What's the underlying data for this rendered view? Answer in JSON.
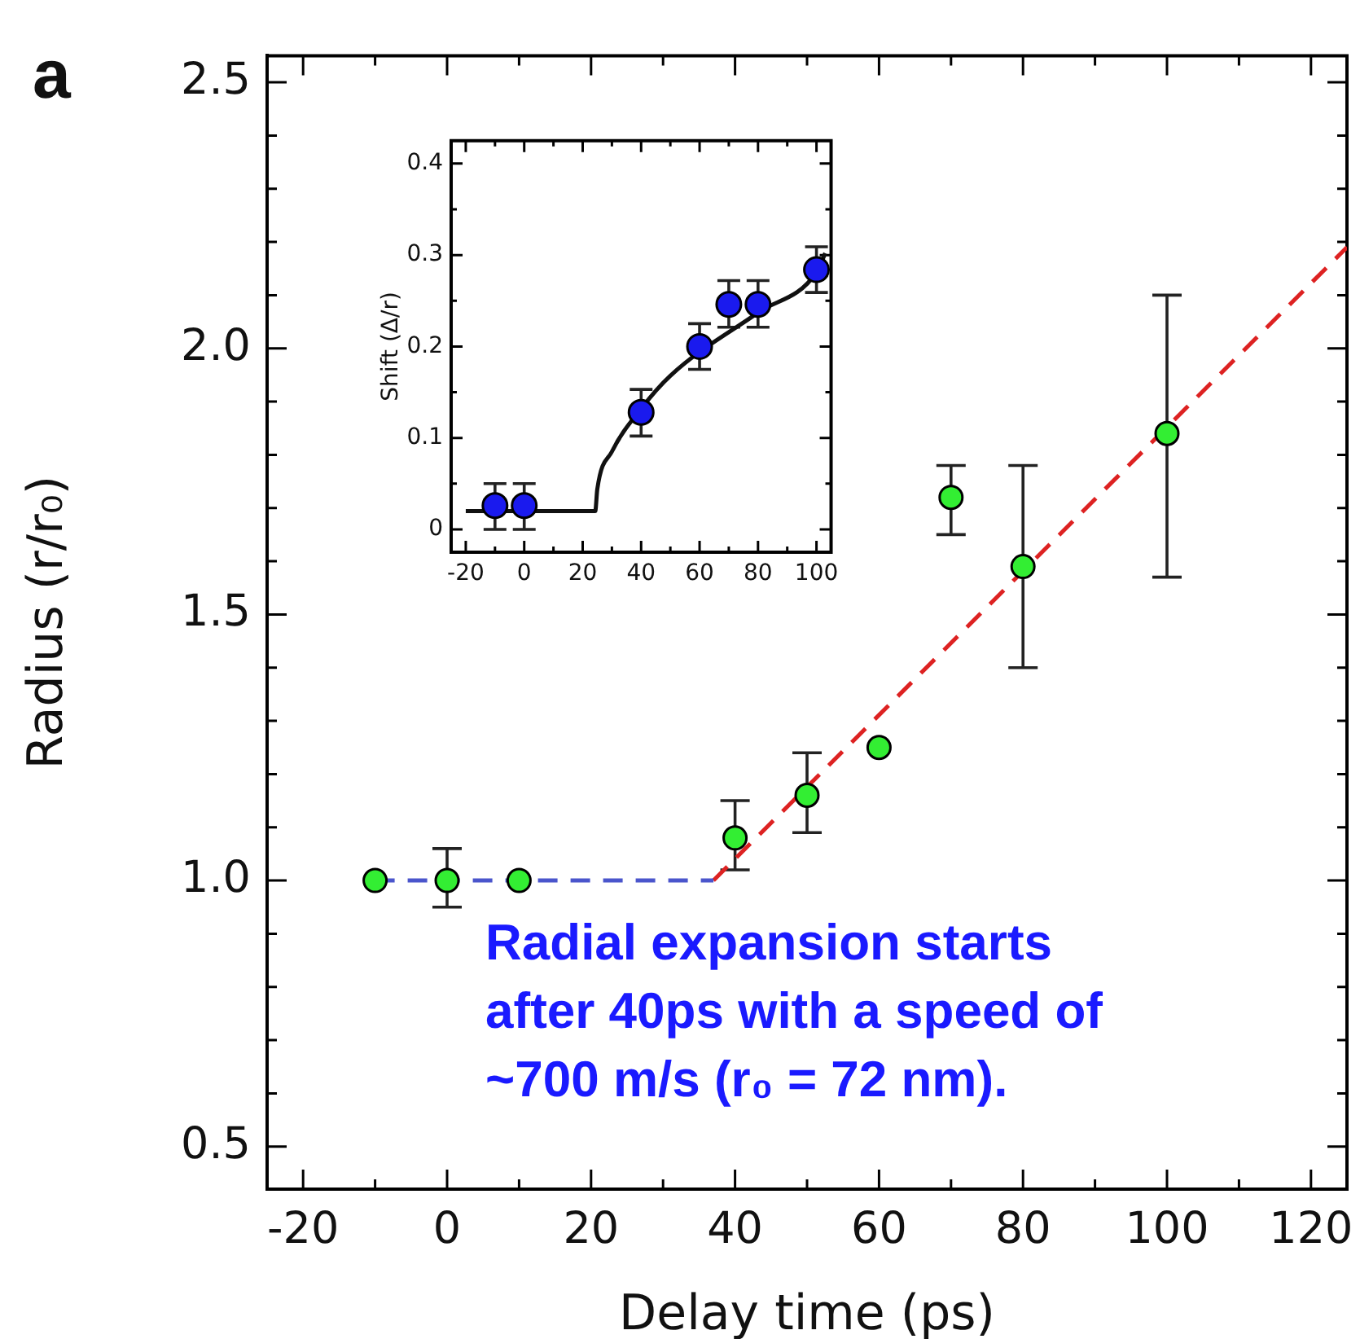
{
  "chart_data": [
    {
      "type": "scatter",
      "xlabel": "Delay time (ps)",
      "ylabel": "Radius (r/r₀)",
      "annotations": [
        "a",
        "Radial expansion starts after 40ps with a speed of ~700 m/s (r₀ = 72 nm)."
      ],
      "xlim": [
        -25,
        125
      ],
      "xticks": [
        -20,
        {
          "value": -10,
          "label": null
        },
        0,
        {
          "value": 10,
          "label": null
        },
        20,
        {
          "value": 30,
          "label": null
        },
        40,
        {
          "value": 50,
          "label": null
        },
        60,
        {
          "value": 70,
          "label": null
        },
        80,
        {
          "value": 90,
          "label": null
        },
        100,
        {
          "value": 110,
          "label": null
        },
        120
      ],
      "ylim": [
        0.42,
        2.55
      ],
      "yticks": [
        0.5,
        {
          "value": 0.6,
          "label": null
        },
        {
          "value": 0.7,
          "label": null
        },
        {
          "value": 0.8,
          "label": null
        },
        {
          "value": 0.9,
          "label": null
        },
        {
          "value": 1,
          "label": "1.0"
        },
        {
          "value": 1.1,
          "label": null
        },
        {
          "value": 1.2,
          "label": null
        },
        {
          "value": 1.3,
          "label": null
        },
        {
          "value": 1.4,
          "label": null
        },
        1.5,
        {
          "value": 1.6,
          "label": null
        },
        {
          "value": 1.7,
          "label": null
        },
        {
          "value": 1.8,
          "label": null
        },
        {
          "value": 1.9,
          "label": null
        },
        {
          "value": 2,
          "label": "2.0"
        },
        {
          "value": 2.1,
          "label": null
        },
        {
          "value": 2.2,
          "label": null
        },
        {
          "value": 2.3,
          "label": null
        },
        {
          "value": 2.4,
          "label": null
        },
        2.5
      ],
      "grid": false,
      "legend": false,
      "marker": "circle",
      "series": [
        {
          "type": "line",
          "color": "#4a55cc",
          "line_style": "dashed",
          "marker": "none",
          "x": [
            -10,
            37
          ],
          "values": [
            1,
            1
          ]
        },
        {
          "type": "line",
          "color": "#dd2222",
          "line_style": "dashed",
          "marker": "none",
          "x": [
            37,
            125
          ],
          "values": [
            1,
            2.19
          ]
        },
        {
          "color": "#33ee33",
          "x": [
            -10,
            0,
            10,
            40,
            50,
            60,
            70,
            80,
            100
          ],
          "values": [
            1,
            1,
            1,
            1.08,
            1.16,
            1.25,
            1.72,
            1.59,
            1.84
          ],
          "errors": [
            null,
            [
              0.95,
              1.06
            ],
            null,
            [
              1.02,
              1.15
            ],
            [
              1.09,
              1.24
            ],
            null,
            [
              1.65,
              1.78
            ],
            [
              1.4,
              1.78
            ],
            [
              1.57,
              2.1
            ]
          ]
        }
      ]
    },
    {
      "type": "scatter",
      "ylabel": "Shift (Δ/r)",
      "xlim": [
        -25,
        105
      ],
      "xticks": [
        -20,
        {
          "value": -10,
          "label": null
        },
        0,
        {
          "value": 10,
          "label": null
        },
        20,
        {
          "value": 30,
          "label": null
        },
        40,
        {
          "value": 50,
          "label": null
        },
        60,
        {
          "value": 70,
          "label": null
        },
        80,
        {
          "value": 90,
          "label": null
        },
        100
      ],
      "ylim": [
        -0.025,
        0.425
      ],
      "yticks": [
        0,
        {
          "value": 0.05,
          "label": null
        },
        0.1,
        {
          "value": 0.15,
          "label": null
        },
        0.2,
        {
          "value": 0.25,
          "label": null
        },
        0.3,
        {
          "value": 0.35,
          "label": null
        },
        0.4
      ],
      "grid": false,
      "legend": false,
      "marker": "circle",
      "series": [
        {
          "type": "line",
          "color": "#111111",
          "line_style": "solid",
          "marker": "none",
          "x": [
            -20,
            24.3,
            25,
            30,
            40,
            50,
            80,
            100,
            103
          ],
          "values": [
            0.02,
            0.02,
            0.044,
            0.085,
            0.132,
            0.168,
            0.237,
            0.281,
            0.302
          ]
        },
        {
          "color": "#1a1aee",
          "x": [
            -10,
            0,
            40,
            60,
            70,
            80,
            100
          ],
          "values": [
            0.026,
            0.026,
            0.128,
            0.2,
            0.246,
            0.246,
            0.284
          ],
          "errors": [
            [
              0,
              0.05
            ],
            [
              0,
              0.05
            ],
            [
              0.102,
              0.153
            ],
            [
              0.175,
              0.225
            ],
            [
              0.221,
              0.272
            ],
            [
              0.221,
              0.272
            ],
            [
              0.259,
              0.309
            ]
          ]
        }
      ]
    }
  ]
}
